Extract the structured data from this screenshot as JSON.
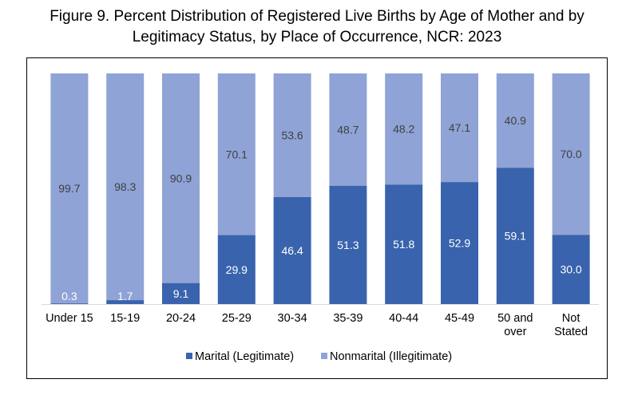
{
  "title_line1": "Figure 9. Percent Distribution of Registered Live Births by Age of Mother and by",
  "title_line2": "Legitimacy Status, by Place of Occurrence, NCR: 2023",
  "chart_data": {
    "type": "bar",
    "stacked": true,
    "categories": [
      "Under 15",
      "15-19",
      "20-24",
      "25-29",
      "30-34",
      "35-39",
      "40-44",
      "45-49",
      "50 and over",
      "Not Stated"
    ],
    "series": [
      {
        "name": "Marital (Legitimate)",
        "color": "#3a63ad",
        "values": [
          0.3,
          1.7,
          9.1,
          29.9,
          46.4,
          51.3,
          51.8,
          52.9,
          59.1,
          30.0
        ],
        "labels": [
          "0.3",
          "1.7",
          "9.1",
          "29.9",
          "46.4",
          "51.3",
          "51.8",
          "52.9",
          "59.1",
          "30.0"
        ]
      },
      {
        "name": "Nonmarital (Illegitimate)",
        "color": "#8fa3d6",
        "values": [
          99.7,
          98.3,
          90.9,
          70.1,
          53.6,
          48.7,
          48.2,
          47.1,
          40.9,
          70.0
        ],
        "labels": [
          "99.7",
          "98.3",
          "90.9",
          "70.1",
          "53.6",
          "48.7",
          "48.2",
          "47.1",
          "40.9",
          "70.0"
        ]
      }
    ],
    "ylim": [
      0,
      100
    ],
    "xlabel": "",
    "ylabel": "",
    "grid": false,
    "legend_position": "bottom"
  }
}
